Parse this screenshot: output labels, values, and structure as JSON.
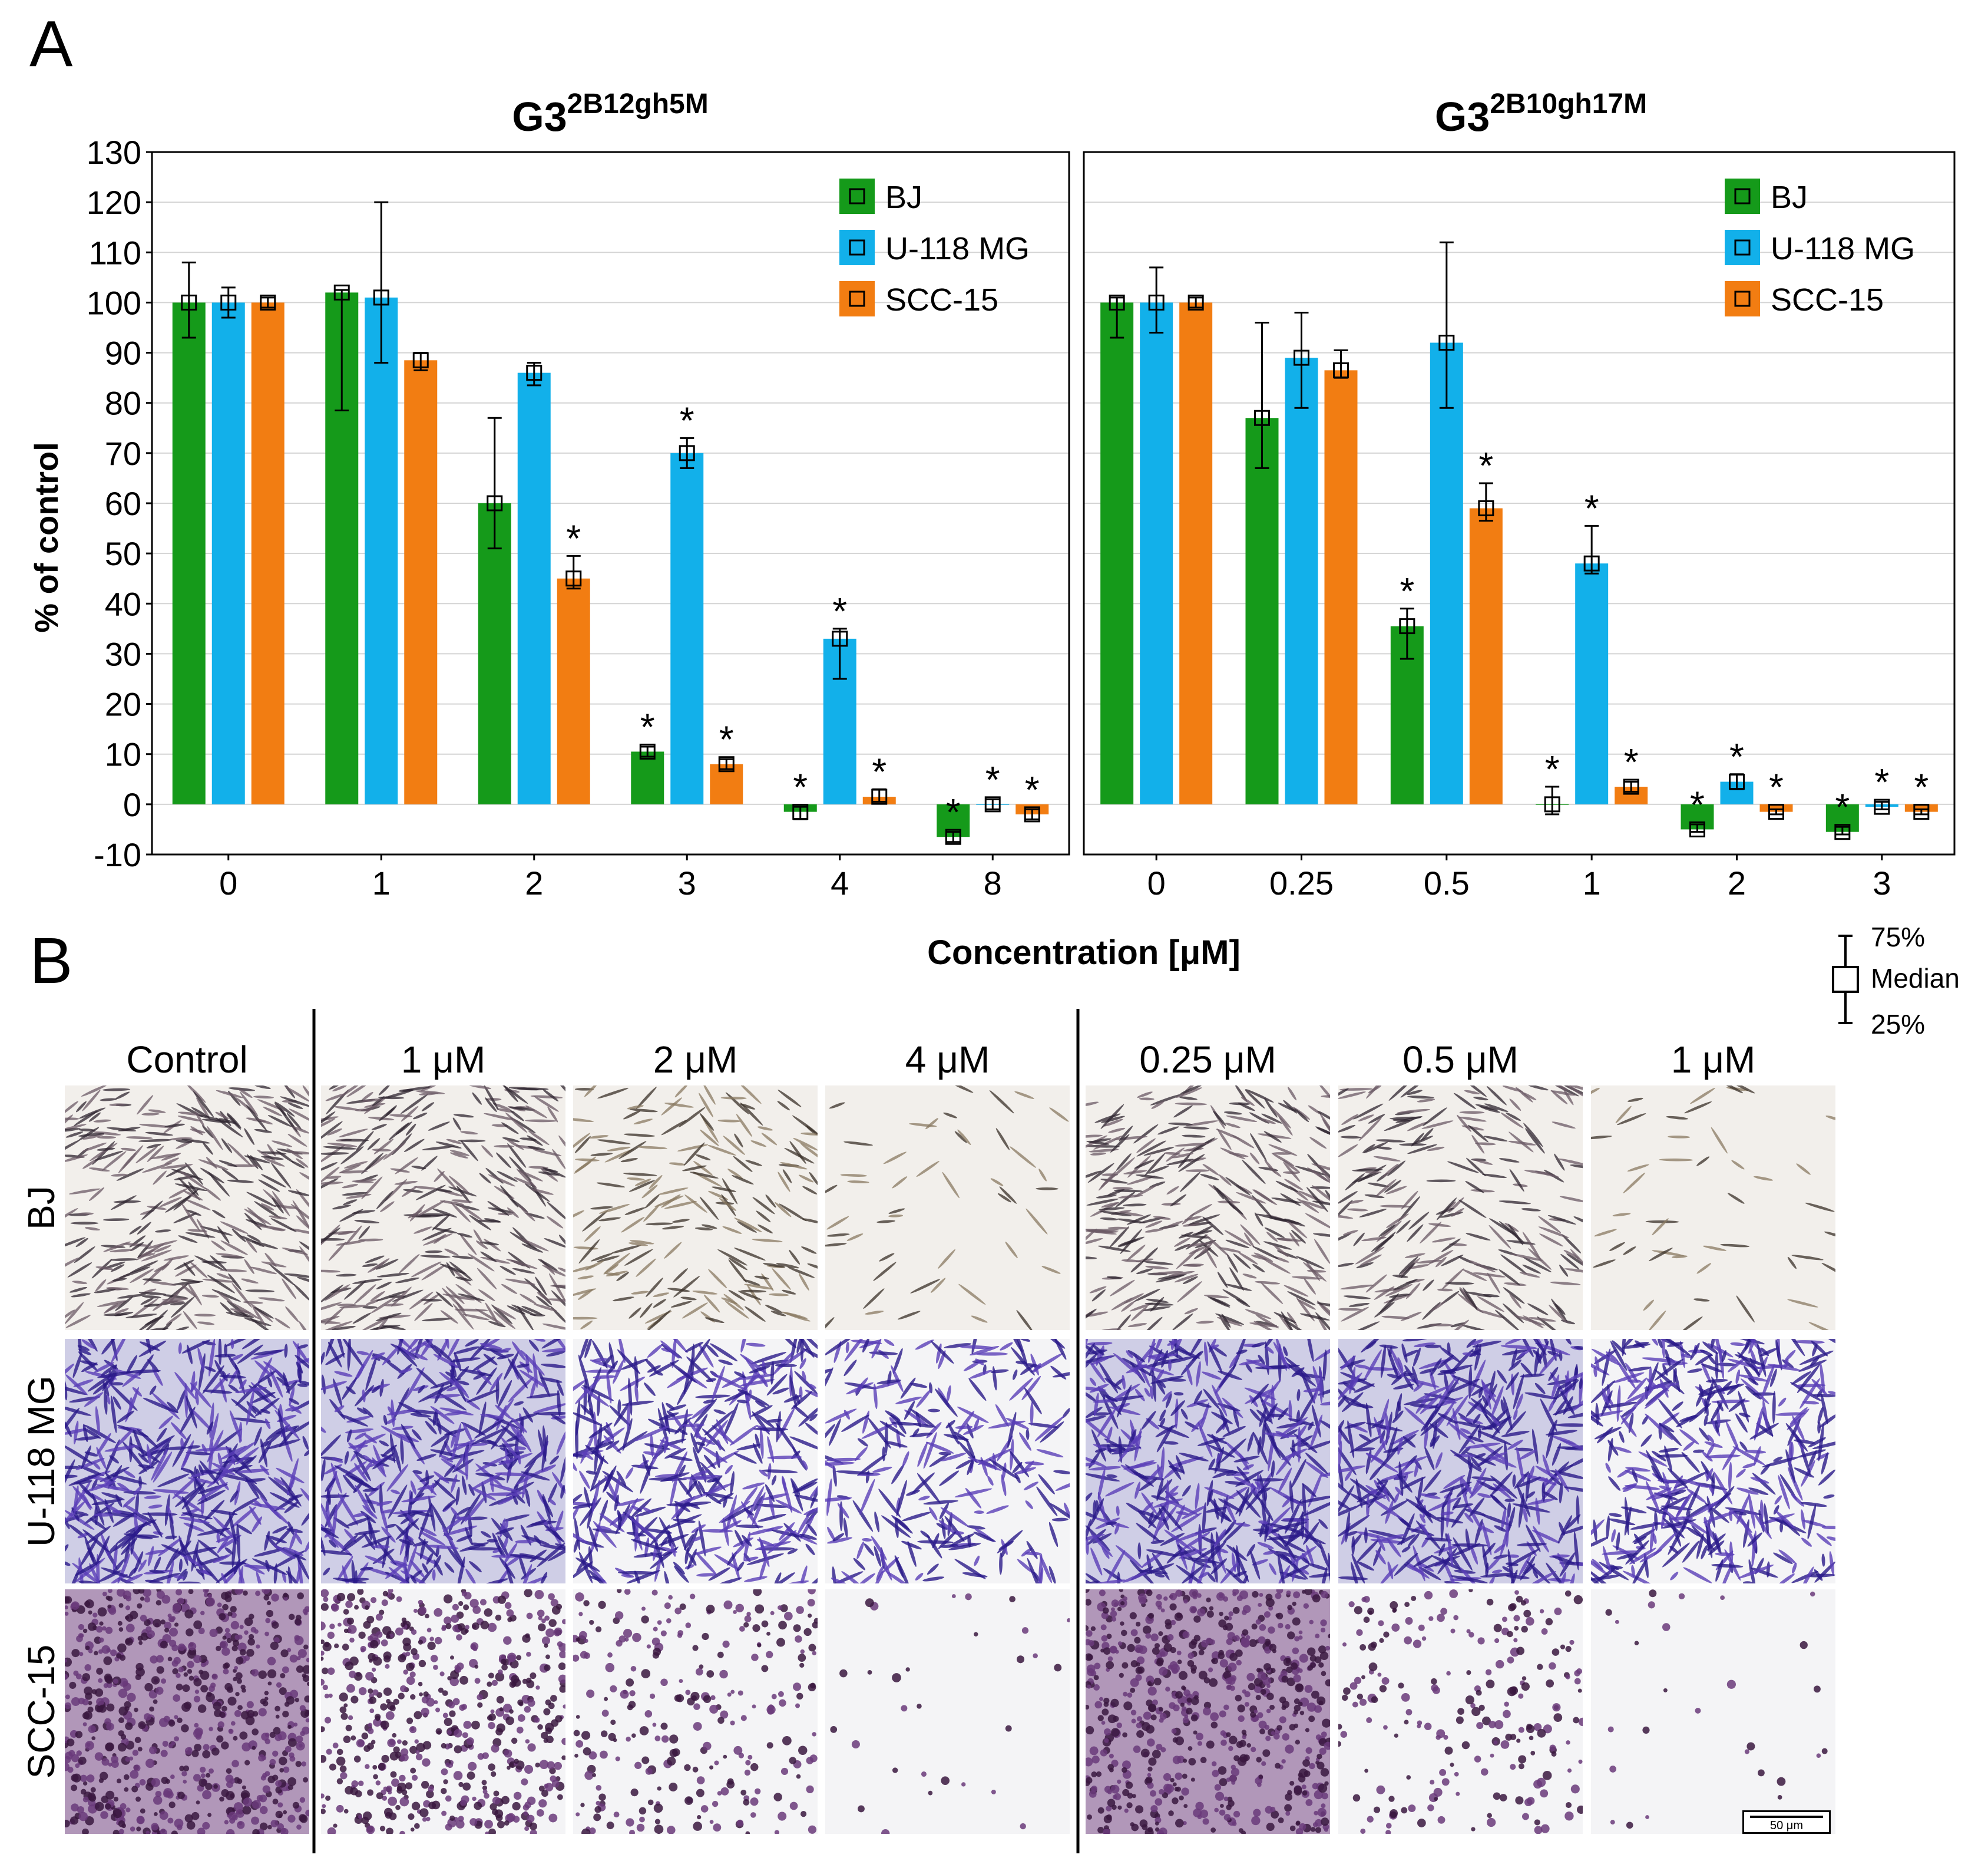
{
  "panel_labels": {
    "a": "A",
    "b": "B"
  },
  "ylabel": "% of control",
  "xlabel": "Concentration [μM]",
  "legend_box": {
    "upper": "75%",
    "middle": "Median",
    "lower": "25%"
  },
  "colors": {
    "BJ": "#159a1a",
    "U-118 MG": "#12b0ea",
    "SCC-15": "#f27d12"
  },
  "chart_data": [
    {
      "type": "bar",
      "title": "G3",
      "title_superscript": "2B12gh5M",
      "categories": [
        "0",
        "1",
        "2",
        "3",
        "4",
        "8"
      ],
      "ylim": [
        -10,
        130
      ],
      "yticks": [
        -10,
        0,
        10,
        20,
        30,
        40,
        50,
        60,
        70,
        80,
        90,
        100,
        110,
        120,
        130
      ],
      "grid": true,
      "legend_position": "top-right",
      "series": [
        {
          "name": "BJ",
          "values": [
            100,
            102,
            60,
            10.5,
            -1.5,
            -6.5
          ],
          "q25": [
            93,
            78.5,
            51,
            9.5,
            -3,
            -7.5
          ],
          "q75": [
            108,
            102.5,
            77,
            11.5,
            -0.5,
            -5.5
          ],
          "significant": [
            false,
            false,
            false,
            true,
            true,
            true
          ]
        },
        {
          "name": "U-118 MG",
          "values": [
            100,
            101,
            86,
            70,
            33,
            0
          ],
          "q25": [
            97,
            88,
            83.5,
            67,
            25,
            -1
          ],
          "q75": [
            103,
            120,
            88,
            73,
            35,
            1
          ],
          "significant": [
            false,
            false,
            false,
            true,
            true,
            true
          ]
        },
        {
          "name": "SCC-15",
          "values": [
            100,
            88.5,
            45,
            8,
            1.5,
            -2
          ],
          "q25": [
            99,
            86.5,
            43,
            7,
            0.5,
            -3
          ],
          "q75": [
            101,
            90,
            49.5,
            9,
            3,
            -1
          ],
          "significant": [
            false,
            false,
            true,
            true,
            true,
            true
          ]
        }
      ]
    },
    {
      "type": "bar",
      "title": "G3",
      "title_superscript": "2B10gh17M",
      "categories": [
        "0",
        "0.25",
        "0.5",
        "1",
        "2",
        "3"
      ],
      "ylim": [
        -10,
        130
      ],
      "grid": true,
      "legend_position": "top-right",
      "series": [
        {
          "name": "BJ",
          "values": [
            100,
            77,
            35.5,
            0,
            -5,
            -5.5
          ],
          "q25": [
            93,
            67,
            29,
            -2,
            -5.5,
            -6
          ],
          "q75": [
            101,
            96,
            39,
            3.5,
            -4,
            -4.5
          ],
          "significant": [
            false,
            false,
            true,
            true,
            true,
            true
          ]
        },
        {
          "name": "U-118 MG",
          "values": [
            100,
            89,
            92,
            48,
            4.5,
            -0.5
          ],
          "q25": [
            94,
            79,
            79,
            46,
            3,
            -1
          ],
          "q75": [
            107,
            98,
            112,
            55.5,
            6,
            0.5
          ],
          "significant": [
            false,
            false,
            false,
            true,
            true,
            true
          ]
        },
        {
          "name": "SCC-15",
          "values": [
            100,
            86.5,
            59,
            3.5,
            -1.5,
            -1.5
          ],
          "q25": [
            99,
            85,
            56.5,
            2.5,
            -2,
            -2
          ],
          "q75": [
            101,
            90.5,
            64,
            4.5,
            -1,
            -1
          ],
          "significant": [
            false,
            false,
            true,
            true,
            true,
            true
          ]
        }
      ]
    }
  ],
  "micrographs": {
    "rows": [
      "BJ",
      "U-118 MG",
      "SCC-15"
    ],
    "columns": [
      "Control",
      "1 μM",
      "2 μM",
      "4 μM",
      "0.25 μM",
      "0.5 μM",
      "1 μM"
    ],
    "density": [
      [
        1.0,
        0.95,
        0.55,
        0.12,
        0.95,
        0.7,
        0.12
      ],
      [
        1.0,
        1.0,
        0.9,
        0.55,
        1.0,
        1.0,
        0.9
      ],
      [
        1.0,
        0.8,
        0.35,
        0.03,
        0.95,
        0.3,
        0.03
      ]
    ],
    "scale_bar": "50 μm"
  }
}
